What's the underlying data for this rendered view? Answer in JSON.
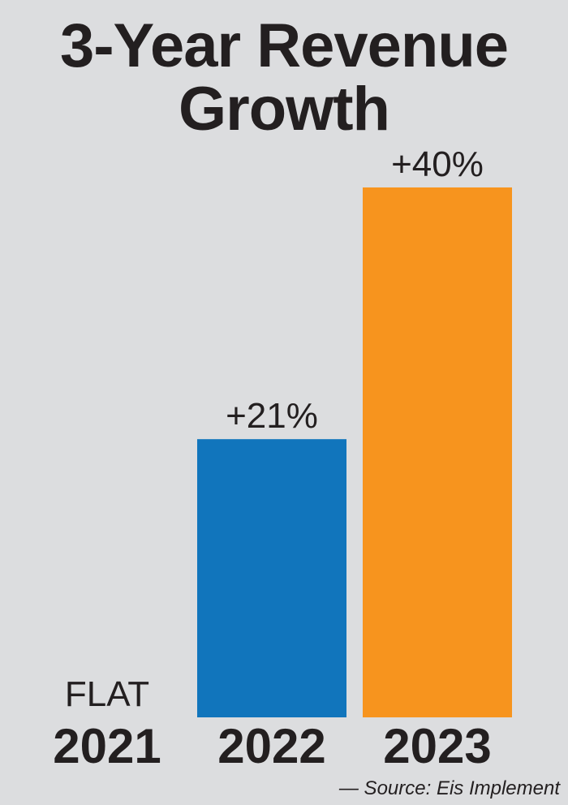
{
  "chart_data": {
    "type": "bar",
    "title": "3-Year Revenue Growth",
    "categories": [
      "2021",
      "2022",
      "2023"
    ],
    "values": [
      0,
      21,
      40
    ],
    "value_labels": [
      "FLAT",
      "+21%",
      "+40%"
    ],
    "colors": [
      "#dcdddf",
      "#1175bc",
      "#f7941e"
    ],
    "ylim": [
      0,
      40
    ],
    "unit": "%",
    "grid": false,
    "legend": "none",
    "source": "— Source: Eis Implement"
  }
}
